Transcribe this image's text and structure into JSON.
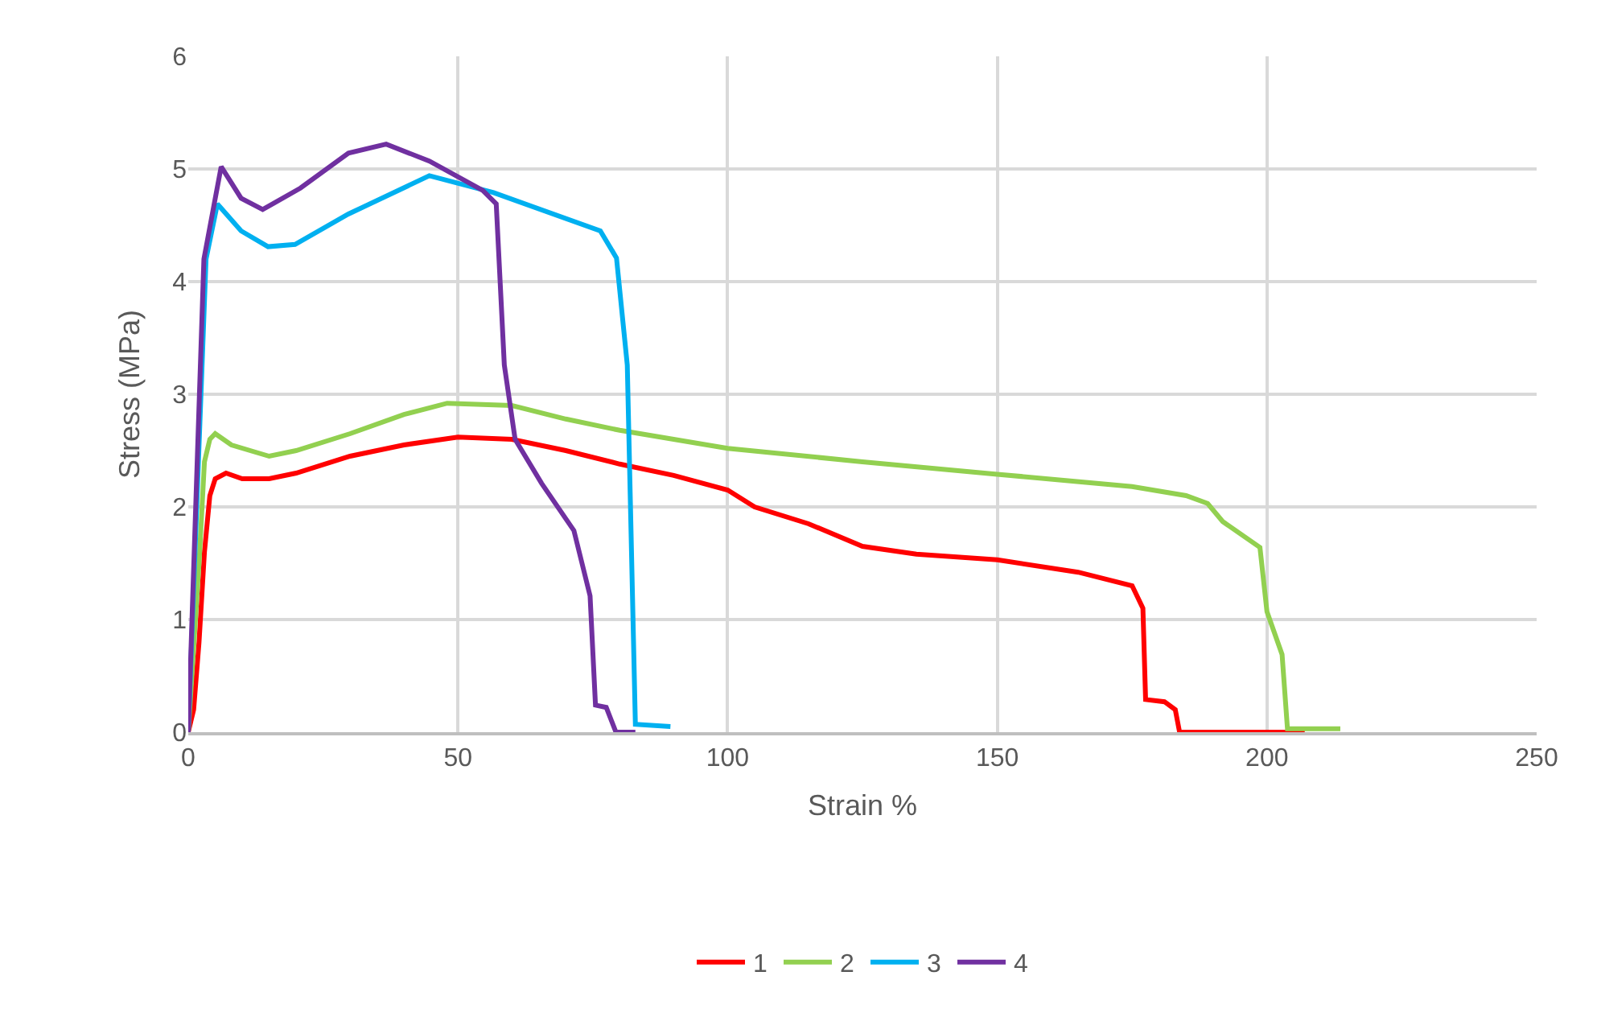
{
  "chart_data": {
    "type": "line",
    "xlabel": "Strain %",
    "ylabel": "Stress (MPa)",
    "xlim": [
      0,
      250
    ],
    "xticks": [
      0,
      50,
      100,
      150,
      200,
      250
    ],
    "ylim": [
      0,
      6
    ],
    "yticks": [
      0,
      1,
      2,
      3,
      4,
      5,
      6
    ],
    "grid": true,
    "legend": "bottom",
    "series": [
      {
        "name": "1",
        "color": "#ff0000",
        "x": [
          0,
          1,
          2,
          3,
          4,
          5,
          7,
          10,
          15,
          20,
          30,
          40,
          50,
          60,
          70,
          80,
          90,
          100,
          105,
          115,
          125,
          135,
          150,
          165,
          175,
          177,
          177.5,
          181,
          183,
          183.8,
          207
        ],
        "values": [
          0,
          0.2,
          0.8,
          1.6,
          2.1,
          2.25,
          2.3,
          2.25,
          2.25,
          2.3,
          2.45,
          2.55,
          2.62,
          2.6,
          2.5,
          2.38,
          2.28,
          2.15,
          2.0,
          1.85,
          1.65,
          1.58,
          1.53,
          1.42,
          1.3,
          1.1,
          0.29,
          0.27,
          0.2,
          0,
          0
        ]
      },
      {
        "name": "2",
        "color": "#92d050",
        "x": [
          0,
          2,
          3,
          4,
          5,
          8,
          15,
          20,
          30,
          40,
          48,
          60,
          70,
          80,
          100,
          125,
          150,
          175,
          185,
          189,
          191.8,
          198.7,
          200,
          202.8,
          203.8,
          213.6
        ],
        "values": [
          0,
          1.5,
          2.4,
          2.6,
          2.65,
          2.55,
          2.45,
          2.5,
          2.65,
          2.82,
          2.92,
          2.9,
          2.78,
          2.68,
          2.52,
          2.4,
          2.29,
          2.18,
          2.1,
          2.03,
          1.87,
          1.64,
          1.07,
          0.69,
          0.03,
          0.03
        ]
      },
      {
        "name": "3",
        "color": "#00b0f0",
        "x": [
          0,
          3.3,
          5.4,
          9.8,
          14.8,
          19.8,
          29.7,
          44.7,
          56.6,
          76.4,
          79.4,
          81.4,
          82.9,
          89.4
        ],
        "values": [
          0,
          4.2,
          4.69,
          4.45,
          4.31,
          4.33,
          4.6,
          4.94,
          4.79,
          4.45,
          4.21,
          3.26,
          0.07,
          0.05
        ]
      },
      {
        "name": "4",
        "color": "#7030a0",
        "x": [
          0,
          2.9,
          6.1,
          9.8,
          13.8,
          20.8,
          29.7,
          36.7,
          44.7,
          54.6,
          57.1,
          58.6,
          60.6,
          65.5,
          71.5,
          74.5,
          75.5,
          77.5,
          79.3,
          82.9
        ],
        "values": [
          0,
          4.2,
          5.02,
          4.74,
          4.64,
          4.83,
          5.14,
          5.22,
          5.07,
          4.81,
          4.69,
          3.26,
          2.6,
          2.21,
          1.79,
          1.21,
          0.24,
          0.22,
          0,
          0
        ]
      }
    ]
  }
}
